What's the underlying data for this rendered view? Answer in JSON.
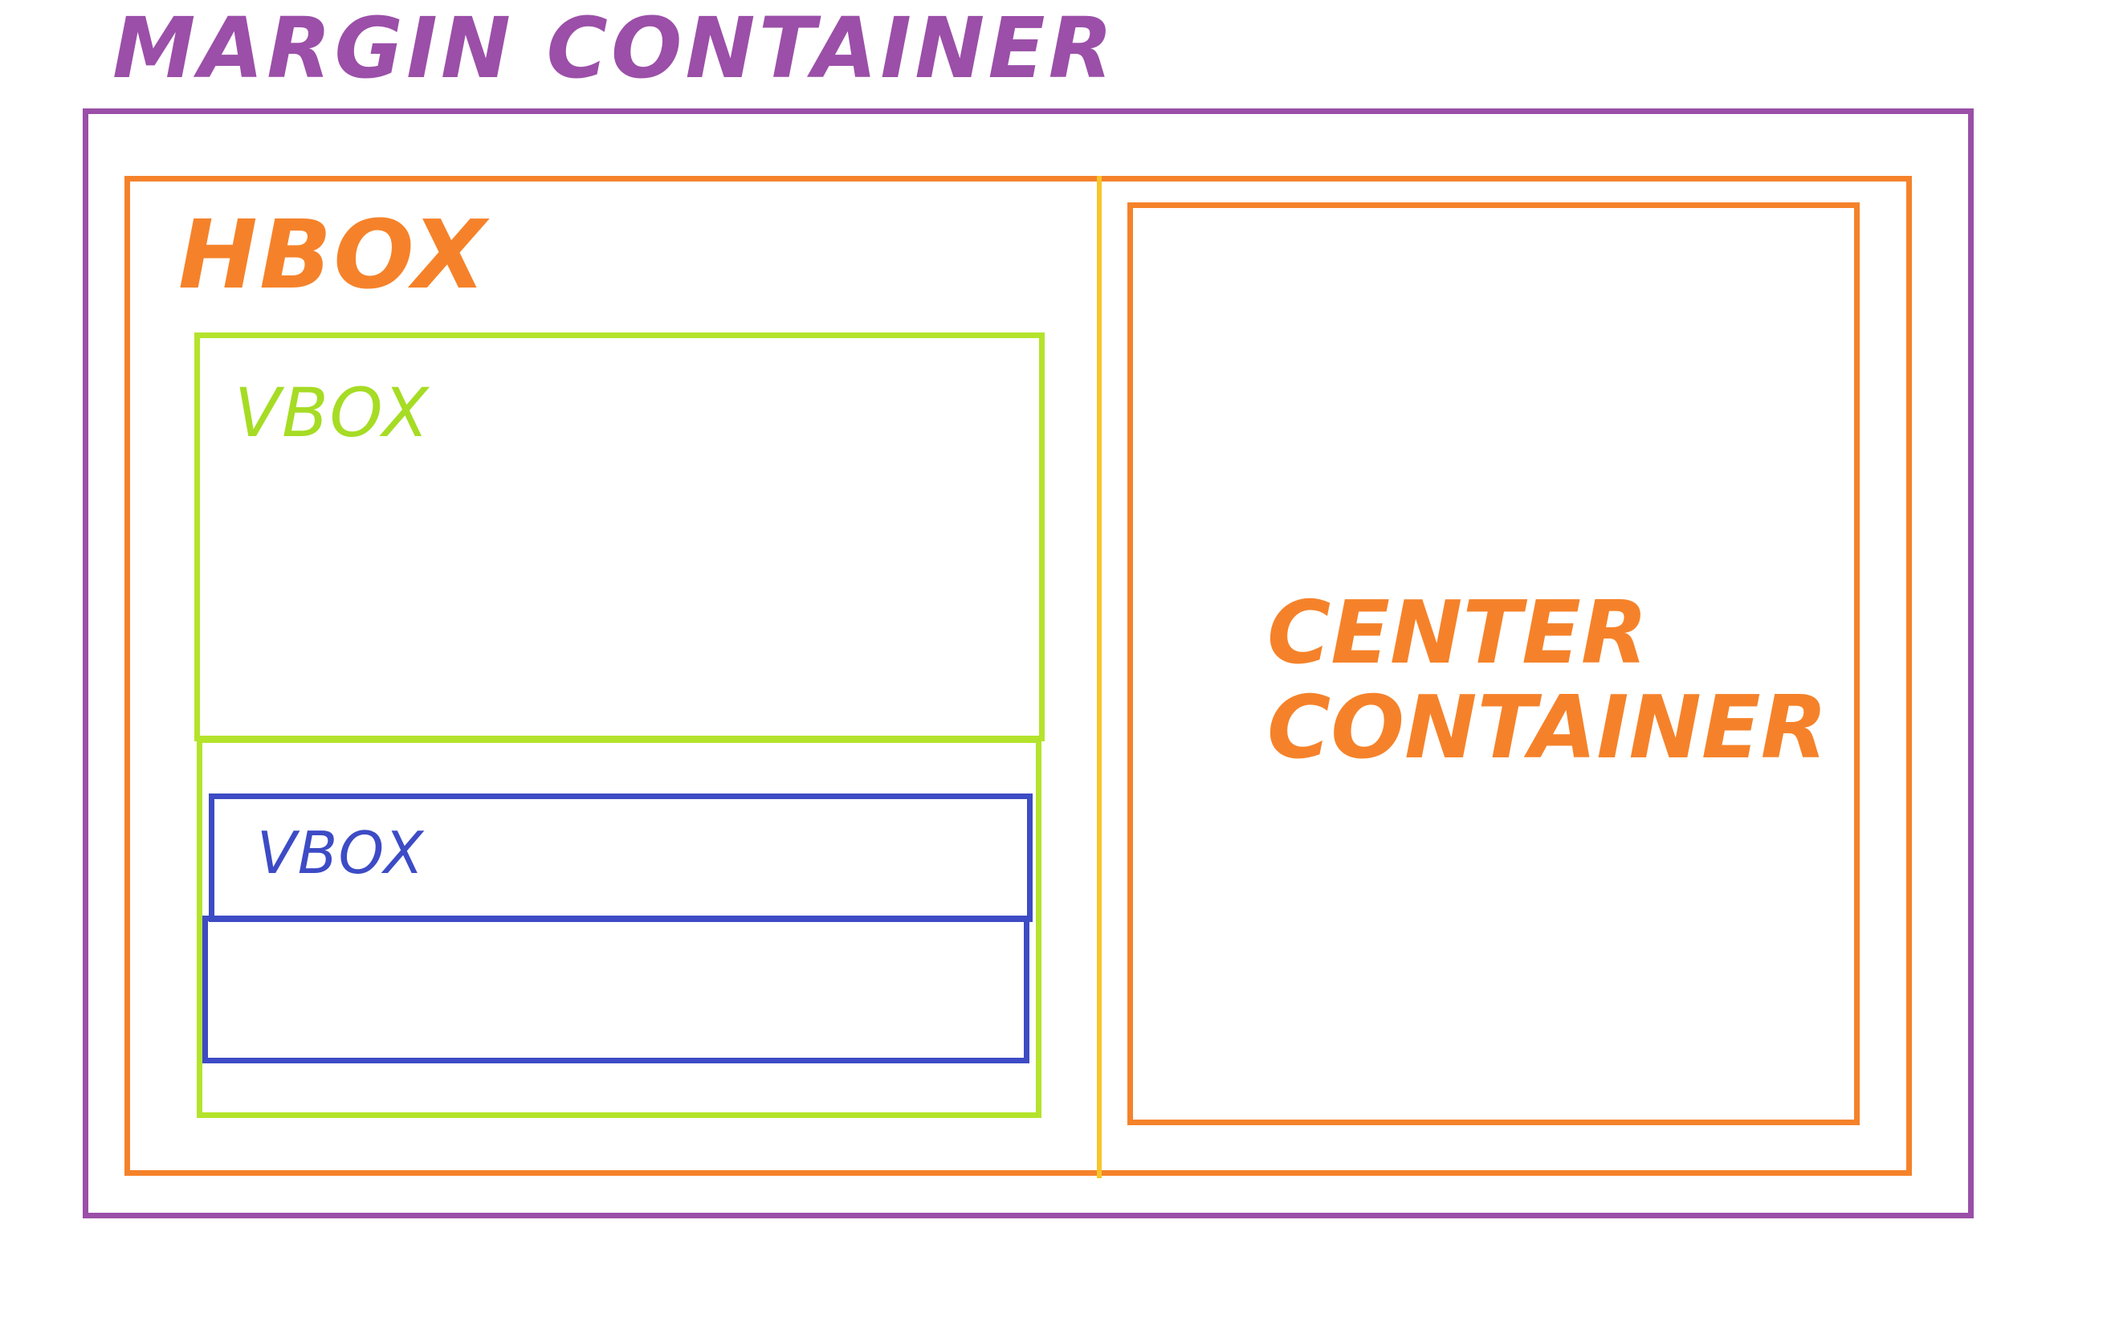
{
  "margin_container": {
    "title": "MARGIN CONTAINER",
    "color": "#9b4fa8"
  },
  "hbox": {
    "title": "HBOX",
    "color": "#f5822a",
    "divider_color": "#f7c52b"
  },
  "vbox": {
    "title": "VBOX",
    "color": "#b4e32c"
  },
  "inner_vbox": {
    "title": "VBOX",
    "color": "#3d4bc5"
  },
  "center_container": {
    "line1": "CENTER",
    "line2": "CONTAINER",
    "color": "#f5822a"
  }
}
